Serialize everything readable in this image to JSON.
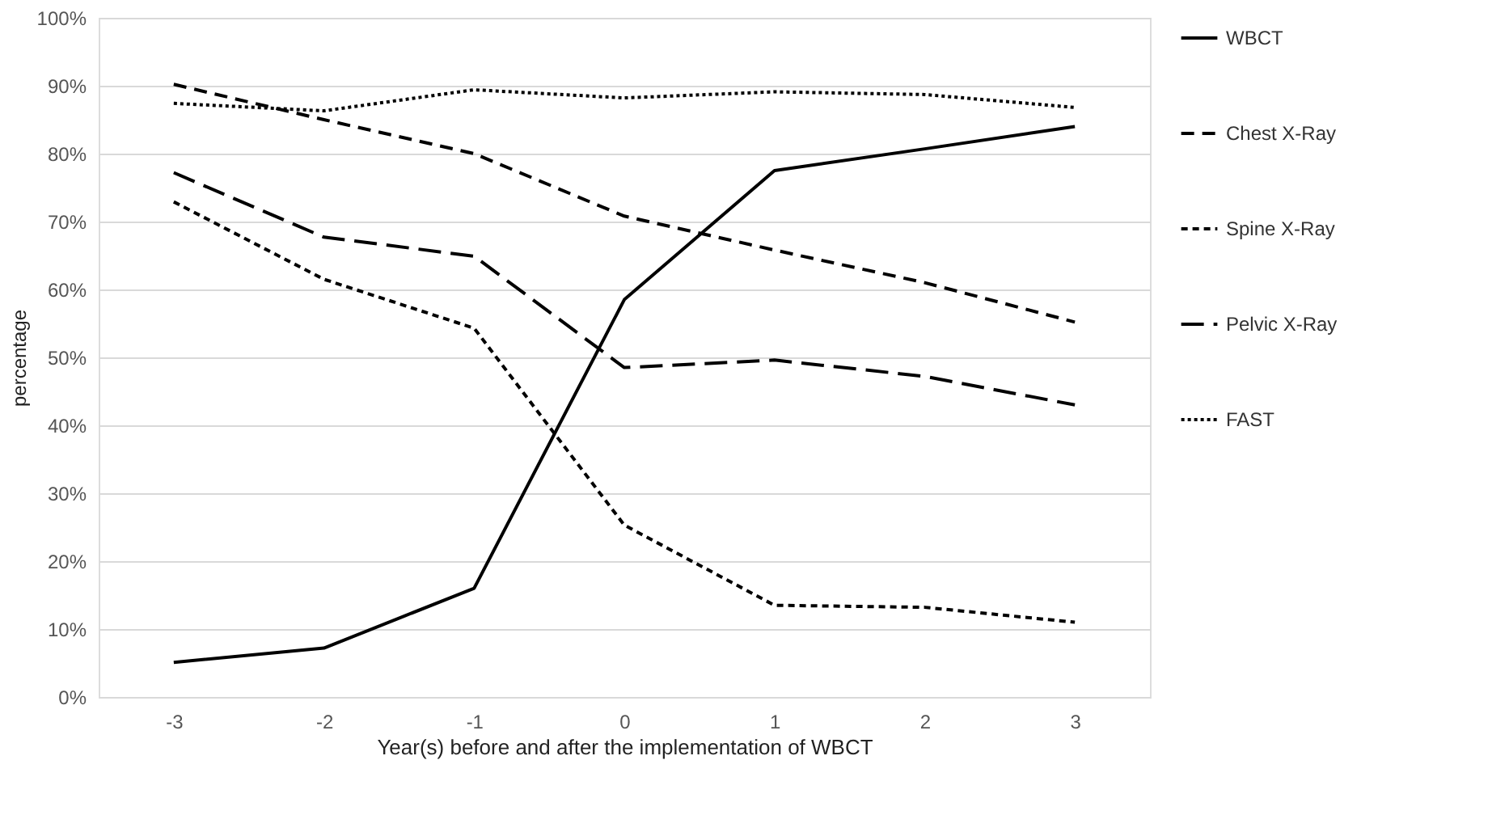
{
  "chart_data": {
    "type": "line",
    "xlabel": "Year(s) before and after the implementation of WBCT",
    "ylabel": "percentage",
    "categories": [
      "-3",
      "-2",
      "-1",
      "0",
      "1",
      "2",
      "3"
    ],
    "series": [
      {
        "name": "WBCT",
        "color": "#000000",
        "line_style": "solid",
        "values": [
          5.1,
          7.2,
          16,
          58.5,
          77.5,
          80.7,
          84
        ]
      },
      {
        "name": "Chest X-Ray",
        "color": "#000000",
        "line_style": "dashed",
        "values": [
          90.2,
          85,
          80,
          70.8,
          65.8,
          61,
          55.2
        ]
      },
      {
        "name": "Spine X-Ray",
        "color": "#000000",
        "line_style": "dashed",
        "values": [
          72.9,
          61.5,
          54.3,
          25.3,
          13.5,
          13.2,
          11
        ]
      },
      {
        "name": "Pelvic X-Ray",
        "color": "#000000",
        "line_style": "dashed",
        "values": [
          77.2,
          67.7,
          64.9,
          48.5,
          49.6,
          47.2,
          43
        ]
      },
      {
        "name": "FAST",
        "color": "#000000",
        "line_style": "dotted",
        "values": [
          87.4,
          86.3,
          89.4,
          88.2,
          89.1,
          88.7,
          86.8
        ]
      }
    ],
    "ylim": [
      0,
      100
    ],
    "yticks": [
      {
        "value": 0,
        "label": "0%"
      },
      {
        "value": 10,
        "label": "10%"
      },
      {
        "value": 20,
        "label": "20%"
      },
      {
        "value": 30,
        "label": "30%"
      },
      {
        "value": 40,
        "label": "40%"
      },
      {
        "value": 50,
        "label": "50%"
      },
      {
        "value": 60,
        "label": "60%"
      },
      {
        "value": 70,
        "label": "70%"
      },
      {
        "value": 80,
        "label": "80%"
      },
      {
        "value": 90,
        "label": "90%"
      },
      {
        "value": 100,
        "label": "100%"
      }
    ],
    "grid": "y",
    "legend": "right",
    "marker": "none"
  }
}
